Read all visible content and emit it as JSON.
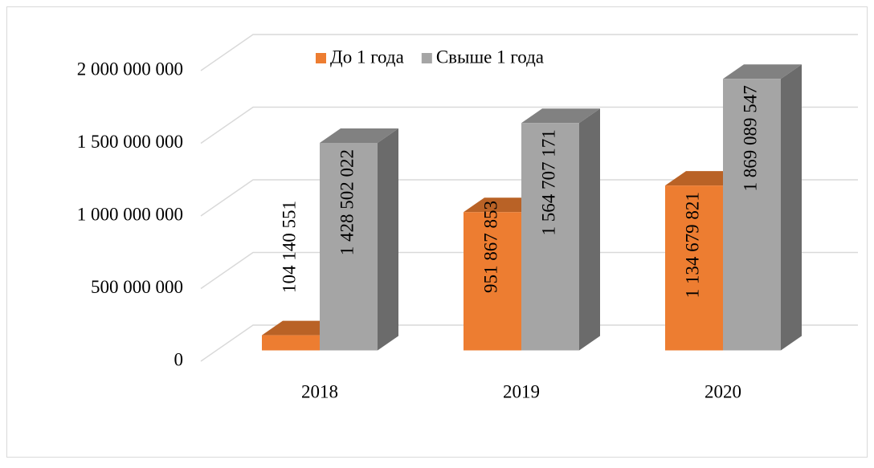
{
  "chart_data": {
    "type": "bar3d",
    "categories": [
      "2018",
      "2019",
      "2020"
    ],
    "series": [
      {
        "name": "До 1 года",
        "color": "#ed7d31",
        "values": [
          104140551,
          951867853,
          1134679821
        ],
        "value_labels": [
          "104 140 551",
          "951 867 853",
          "1 134 679 821"
        ]
      },
      {
        "name": "Свыше 1 года",
        "color": "#a5a5a5",
        "values": [
          1428502022,
          1564707171,
          1869089547
        ],
        "value_labels": [
          "1 428 502 022",
          "1 564 707 171",
          "1 869 089 547"
        ]
      }
    ],
    "ylim": [
      0,
      2000000000
    ],
    "yticks": [
      0,
      {
        "value": 500000000,
        "label": "500 000 000"
      },
      {
        "value": 1000000000,
        "label": "1 000 000 000"
      },
      {
        "value": 1500000000,
        "label": "1 500 000 000"
      },
      {
        "value": 2000000000,
        "label": "2 000 000 000"
      }
    ],
    "grid": true,
    "legend": "top"
  }
}
